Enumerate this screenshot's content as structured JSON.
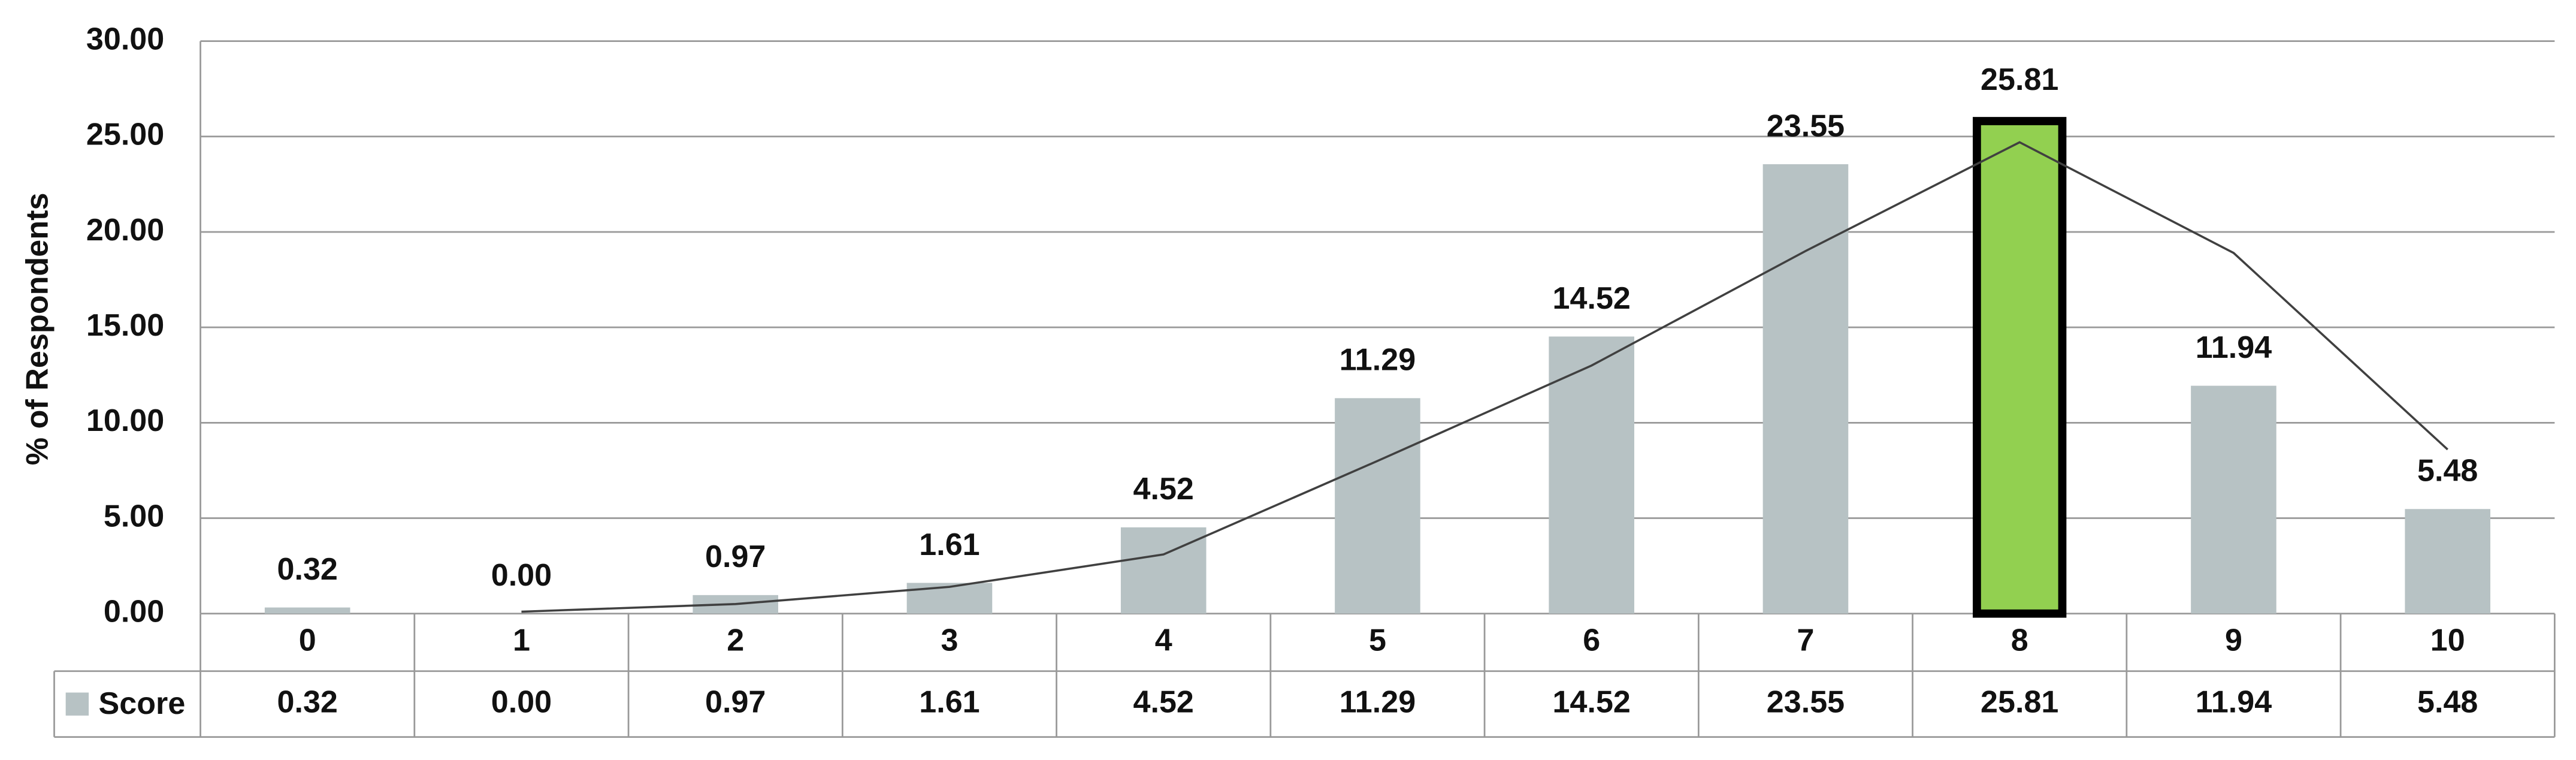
{
  "chart_data": {
    "type": "bar",
    "y_label": "% of Respondents",
    "categories": [
      "0",
      "1",
      "2",
      "3",
      "4",
      "5",
      "6",
      "7",
      "8",
      "9",
      "10"
    ],
    "series": [
      {
        "name": "Score",
        "color": "#b7c2c4",
        "values": [
          0.32,
          0,
          0.97,
          1.61,
          4.52,
          11.29,
          14.52,
          23.55,
          25.81,
          11.94,
          5.48
        ],
        "value_labels": [
          "0.32",
          "0.00",
          "0.97",
          "1.61",
          "4.52",
          "11.29",
          "14.52",
          "23.55",
          "25.81",
          "11.94",
          "5.48"
        ]
      },
      {
        "type": "line",
        "color": "#404040",
        "values": [
          null,
          0.1,
          0.5,
          1.4,
          3.1,
          8,
          13,
          19,
          24.7,
          18.9,
          8.6
        ]
      }
    ],
    "highlight_index": 8,
    "highlight_color": "#92d050",
    "ylim": [
      0,
      30
    ],
    "yticks": [
      {
        "value": 0,
        "label": "0.00"
      },
      {
        "value": 5,
        "label": "5.00"
      },
      {
        "value": 10,
        "label": "10.00"
      },
      {
        "value": 15,
        "label": "15.00"
      },
      {
        "value": 20,
        "label": "20.00"
      },
      {
        "value": 25,
        "label": "25.00"
      },
      {
        "value": 30,
        "label": "30.00"
      }
    ],
    "grid": true,
    "data_table": true
  }
}
